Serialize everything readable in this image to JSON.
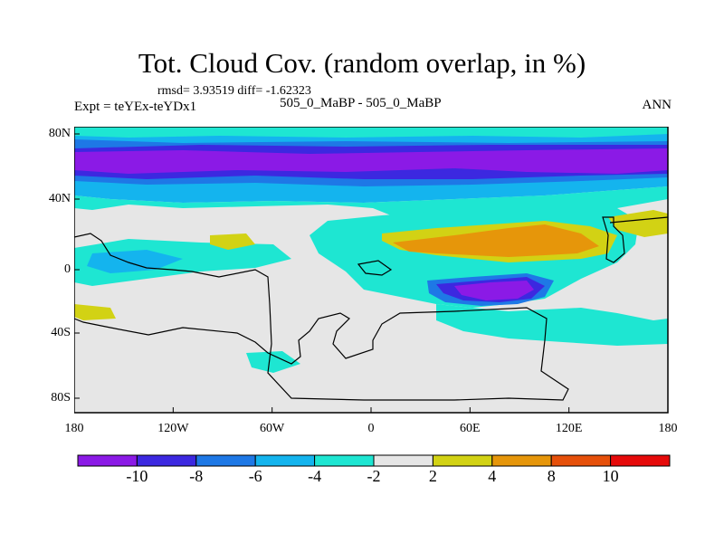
{
  "title": "Tot. Cloud Cov. (random overlap, in %)",
  "stats": "rmsd= 3.93519 diff= -1.62323",
  "experiment": "Expt = teYEx-teYDx1",
  "comparison": "505_0_MaBP - 505_0_MaBP",
  "season": "ANN",
  "map": {
    "lat_ticks": [
      "80N",
      "40N",
      "0",
      "40S",
      "80S"
    ],
    "lon_ticks": [
      "180",
      "120W",
      "60W",
      "0",
      "60E",
      "120E",
      "180"
    ],
    "land_border_color": "#000000",
    "background_color": "#e6e6e6"
  },
  "colorbar": {
    "colors": [
      "#8b1ae6",
      "#3c28e0",
      "#1e78e6",
      "#14b4ee",
      "#1ee6d2",
      "#e6e6e6",
      "#d2d214",
      "#e6960a",
      "#e6500a",
      "#e60a0a"
    ],
    "labels": [
      "-10",
      "-8",
      "-6",
      "-4",
      "-2",
      "2",
      "4",
      "8",
      "10"
    ]
  }
}
